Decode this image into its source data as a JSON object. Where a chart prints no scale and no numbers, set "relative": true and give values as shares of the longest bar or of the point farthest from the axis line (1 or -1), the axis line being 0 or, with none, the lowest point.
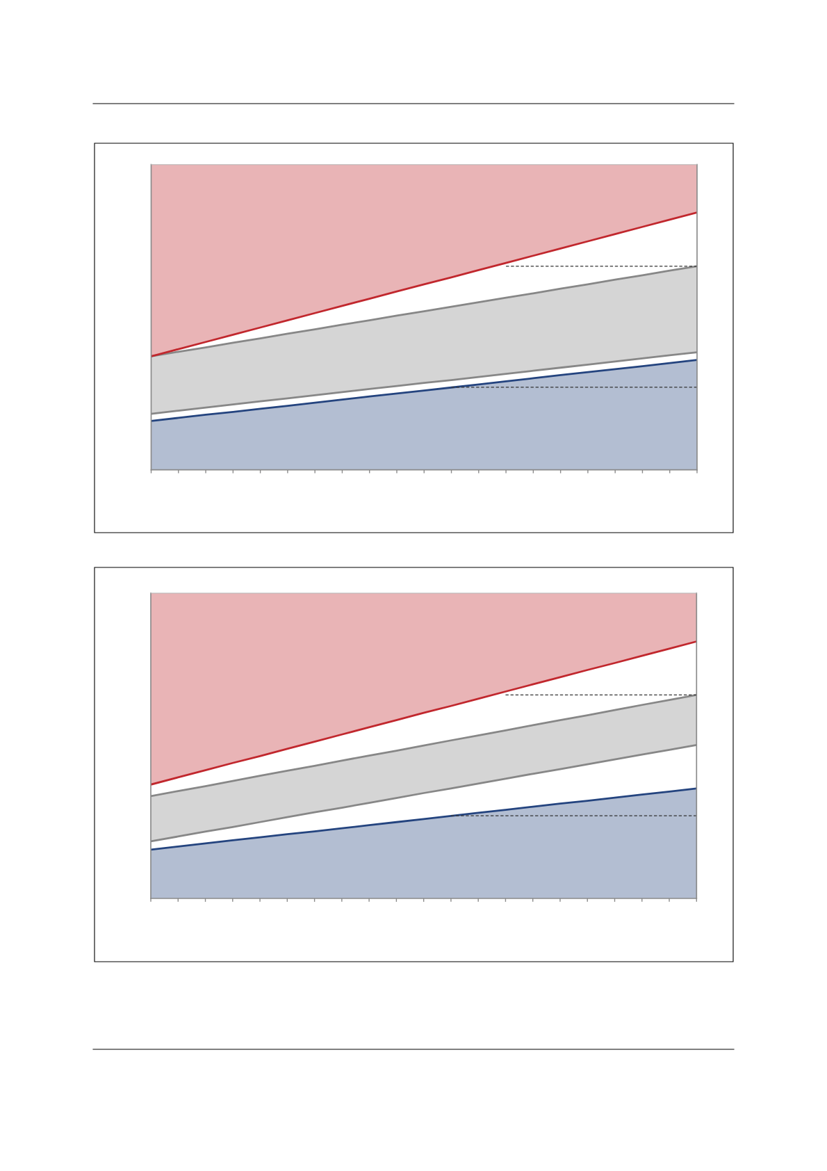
{
  "chart_data": [
    {
      "type": "line",
      "relative": true,
      "line_style": "solid",
      "categories": [
        null,
        null,
        null,
        null,
        null,
        null,
        null,
        null,
        null,
        null,
        null,
        null,
        null,
        null,
        null,
        null,
        null,
        null,
        null,
        null,
        null
      ],
      "series": [
        {
          "type": "area",
          "color": "#24447f",
          "values": [
            0.19,
            0.202,
            0.214,
            0.225,
            0.237,
            0.249,
            0.261,
            0.273,
            0.285,
            0.297,
            0.308,
            0.32,
            0.332,
            0.344,
            0.356,
            0.368,
            0.38,
            0.391,
            0.403,
            0.415,
            0.427
          ]
        },
        {
          "color": "#878787",
          "values": [
            0.218,
            0.23,
            0.242,
            0.254,
            0.266,
            0.278,
            0.29,
            0.302,
            0.314,
            0.326,
            0.338,
            0.349,
            0.361,
            0.373,
            0.385,
            0.397,
            0.409,
            0.421,
            0.433,
            0.445,
            0.457
          ]
        },
        {
          "color": "#878787",
          "values": [
            0.441,
            0.459,
            0.476,
            0.494,
            0.511,
            0.529,
            0.546,
            0.564,
            0.581,
            0.599,
            0.616,
            0.634,
            0.651,
            0.669,
            0.686,
            0.704,
            0.721,
            0.739,
            0.756,
            0.774,
            0.791
          ],
          "lower": [
            0.218,
            0.23,
            0.242,
            0.254,
            0.266,
            0.278,
            0.29,
            0.302,
            0.314,
            0.326,
            0.338,
            0.349,
            0.361,
            0.373,
            0.385,
            0.397,
            0.409,
            0.421,
            0.433,
            0.445,
            0.457
          ],
          "upper": [
            0.441,
            0.459,
            0.476,
            0.494,
            0.511,
            0.529,
            0.546,
            0.564,
            0.581,
            0.599,
            0.616,
            0.634,
            0.651,
            0.669,
            0.686,
            0.704,
            0.721,
            0.739,
            0.756,
            0.774,
            0.791
          ]
        },
        {
          "color": "#c1272d",
          "values": [
            0.441,
            0.469,
            0.497,
            0.525,
            0.553,
            0.581,
            0.609,
            0.637,
            0.665,
            0.693,
            0.721,
            0.748,
            0.776,
            0.804,
            0.832,
            0.86,
            0.888,
            0.916,
            0.944,
            0.972,
            1
          ],
          "lower": [
            0.441,
            0.469,
            0.497,
            0.525,
            0.553,
            0.581,
            0.609,
            0.637,
            0.665,
            0.693,
            0.721,
            0.748,
            0.776,
            0.804,
            0.832,
            0.86,
            0.888,
            0.916,
            0.944,
            0.972,
            1
          ],
          "upper": [
            1.186,
            1.186,
            1.186,
            1.186,
            1.186,
            1.186,
            1.186,
            1.186,
            1.186,
            1.186,
            1.186,
            1.186,
            1.186,
            1.186,
            1.186,
            1.186,
            1.186,
            1.186,
            1.186,
            1.186,
            1.186
          ]
        },
        {
          "color": "#333333",
          "line_style": "dashed",
          "values": [
            null,
            null,
            null,
            null,
            null,
            null,
            null,
            null,
            null,
            null,
            null,
            null,
            null,
            0.791,
            0.791,
            0.791,
            0.791,
            0.791,
            0.791,
            0.791,
            0.791
          ]
        },
        {
          "color": "#333333",
          "line_style": "dashed",
          "values": [
            null,
            null,
            null,
            null,
            null,
            null,
            null,
            null,
            null,
            null,
            null,
            0.321,
            0.321,
            0.321,
            0.321,
            0.321,
            0.321,
            0.321,
            0.321,
            0.321,
            0.321
          ]
        }
      ]
    },
    {
      "type": "line",
      "relative": true,
      "line_style": "solid",
      "categories": [
        null,
        null,
        null,
        null,
        null,
        null,
        null,
        null,
        null,
        null,
        null,
        null,
        null,
        null,
        null,
        null,
        null,
        null,
        null,
        null,
        null
      ],
      "series": [
        {
          "type": "area",
          "color": "#24447f",
          "values": [
            0.19,
            0.202,
            0.214,
            0.226,
            0.238,
            0.25,
            0.261,
            0.273,
            0.285,
            0.297,
            0.309,
            0.321,
            0.333,
            0.345,
            0.357,
            0.369,
            0.38,
            0.392,
            0.404,
            0.416,
            0.428
          ]
        },
        {
          "color": "#878787",
          "values": [
            0.222,
            0.241,
            0.26,
            0.278,
            0.297,
            0.316,
            0.335,
            0.353,
            0.372,
            0.391,
            0.41,
            0.428,
            0.447,
            0.466,
            0.485,
            0.503,
            0.522,
            0.541,
            0.56,
            0.578,
            0.597
          ]
        },
        {
          "color": "#878787",
          "values": [
            0.398,
            0.418,
            0.437,
            0.457,
            0.477,
            0.497,
            0.516,
            0.536,
            0.556,
            0.575,
            0.595,
            0.615,
            0.634,
            0.654,
            0.674,
            0.694,
            0.713,
            0.733,
            0.753,
            0.772,
            0.792
          ],
          "lower": [
            0.222,
            0.241,
            0.26,
            0.278,
            0.297,
            0.316,
            0.335,
            0.353,
            0.372,
            0.391,
            0.41,
            0.428,
            0.447,
            0.466,
            0.485,
            0.503,
            0.522,
            0.541,
            0.56,
            0.578,
            0.597
          ],
          "upper": [
            0.398,
            0.418,
            0.437,
            0.457,
            0.477,
            0.497,
            0.516,
            0.536,
            0.556,
            0.575,
            0.595,
            0.615,
            0.634,
            0.654,
            0.674,
            0.694,
            0.713,
            0.733,
            0.753,
            0.772,
            0.792
          ]
        },
        {
          "color": "#c1272d",
          "values": [
            0.443,
            0.471,
            0.499,
            0.527,
            0.554,
            0.582,
            0.61,
            0.638,
            0.666,
            0.694,
            0.722,
            0.749,
            0.777,
            0.805,
            0.833,
            0.861,
            0.889,
            0.916,
            0.944,
            0.972,
            1
          ],
          "lower": [
            0.443,
            0.471,
            0.499,
            0.527,
            0.554,
            0.582,
            0.61,
            0.638,
            0.666,
            0.694,
            0.722,
            0.749,
            0.777,
            0.805,
            0.833,
            0.861,
            0.889,
            0.916,
            0.944,
            0.972,
            1
          ],
          "upper": [
            1.188,
            1.188,
            1.188,
            1.188,
            1.188,
            1.188,
            1.188,
            1.188,
            1.188,
            1.188,
            1.188,
            1.188,
            1.188,
            1.188,
            1.188,
            1.188,
            1.188,
            1.188,
            1.188,
            1.188,
            1.188
          ]
        },
        {
          "color": "#333333",
          "line_style": "dashed",
          "values": [
            null,
            null,
            null,
            null,
            null,
            null,
            null,
            null,
            null,
            null,
            null,
            null,
            null,
            0.792,
            0.792,
            0.792,
            0.792,
            0.792,
            0.792,
            0.792,
            0.792
          ]
        },
        {
          "color": "#333333",
          "line_style": "dashed",
          "values": [
            null,
            null,
            null,
            null,
            null,
            null,
            null,
            null,
            null,
            null,
            null,
            0.322,
            0.322,
            0.322,
            0.322,
            0.322,
            0.322,
            0.322,
            0.322,
            0.322,
            0.322
          ]
        }
      ]
    }
  ]
}
